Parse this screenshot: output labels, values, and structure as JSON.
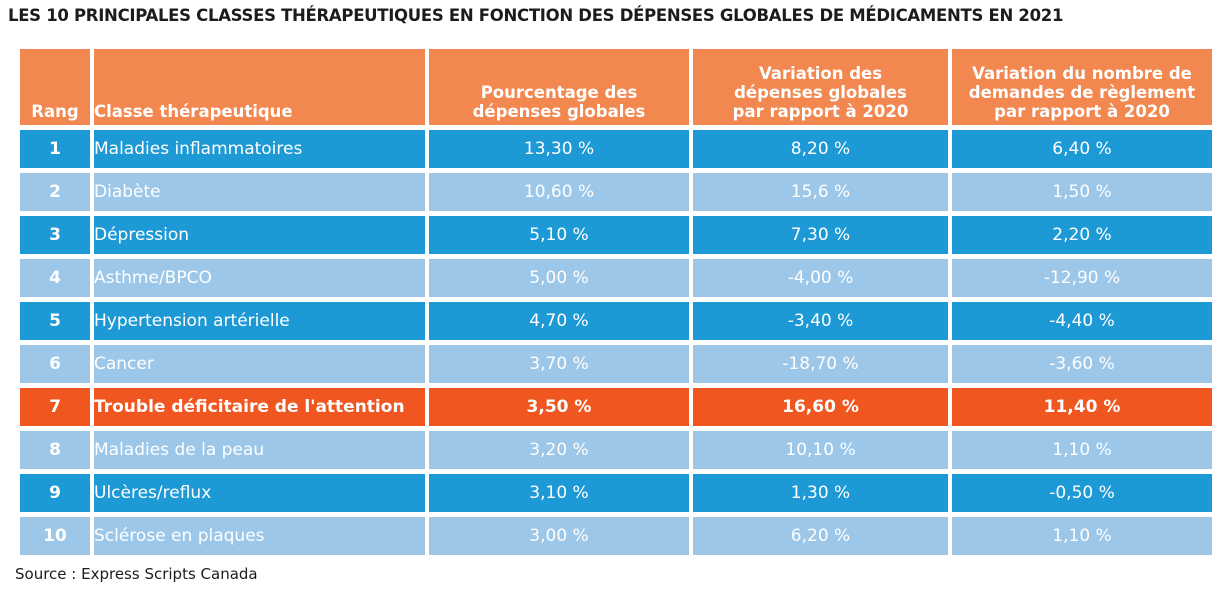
{
  "title": "LES 10 PRINCIPALES CLASSES THÉRAPEUTIQUES EN FONCTION DES DÉPENSES GLOBALES DE MÉDICAMENTS EN 2021",
  "source": "Source : Express Scripts Canada",
  "colors": {
    "header": "#f2874f",
    "row_dark": "#1d9ad6",
    "row_light": "#9cc7e8",
    "row_highlight": "#f0561f"
  },
  "chart_data": {
    "type": "table",
    "title": "LES 10 PRINCIPALES CLASSES THÉRAPEUTIQUES EN FONCTION DES DÉPENSES GLOBALES DE MÉDICAMENTS EN 2021",
    "columns": [
      "Rang",
      "Classe thérapeutique",
      "Pourcentage des dépenses globales",
      "Variation des dépenses globales par rapport à 2020",
      "Variation du nombre de demandes de règlement par rapport à 2020"
    ],
    "header_lines": {
      "rank": [
        "Rang"
      ],
      "class": [
        "Classe thérapeutique"
      ],
      "share": [
        "Pourcentage des",
        "dépenses globales"
      ],
      "spend_change": [
        "Variation des",
        "dépenses globales",
        "par rapport à 2020"
      ],
      "claims_change": [
        "Variation du nombre de",
        "demandes de règlement",
        "par rapport à 2020"
      ]
    },
    "rows": [
      {
        "rank": "1",
        "class": "Maladies inflammatoires",
        "share": "13,30 %",
        "spend_change": "8,20 %",
        "claims_change": "6,40 %",
        "style": "dark"
      },
      {
        "rank": "2",
        "class": "Diabète",
        "share": "10,60 %",
        "spend_change": "15,6 %",
        "claims_change": "1,50 %",
        "style": "light"
      },
      {
        "rank": "3",
        "class": "Dépression",
        "share": "5,10 %",
        "spend_change": "7,30 %",
        "claims_change": "2,20 %",
        "style": "dark"
      },
      {
        "rank": "4",
        "class": "Asthme/BPCO",
        "share": "5,00 %",
        "spend_change": "-4,00 %",
        "claims_change": "-12,90 %",
        "style": "light"
      },
      {
        "rank": "5",
        "class": "Hypertension artérielle",
        "share": "4,70 %",
        "spend_change": "-3,40 %",
        "claims_change": "-4,40 %",
        "style": "dark"
      },
      {
        "rank": "6",
        "class": "Cancer",
        "share": "3,70 %",
        "spend_change": "-18,70 %",
        "claims_change": "-3,60 %",
        "style": "light"
      },
      {
        "rank": "7",
        "class": "Trouble déficitaire de l'attention",
        "share": "3,50 %",
        "spend_change": "16,60 %",
        "claims_change": "11,40 %",
        "style": "hl"
      },
      {
        "rank": "8",
        "class": "Maladies de la peau",
        "share": "3,20 %",
        "spend_change": "10,10 %",
        "claims_change": "1,10 %",
        "style": "light"
      },
      {
        "rank": "9",
        "class": "Ulcères/reflux",
        "share": "3,10 %",
        "spend_change": "1,30 %",
        "claims_change": "-0,50 %",
        "style": "dark"
      },
      {
        "rank": "10",
        "class": "Sclérose en plaques",
        "share": "3,00 %",
        "spend_change": "6,20 %",
        "claims_change": "1,10 %",
        "style": "light"
      }
    ]
  }
}
